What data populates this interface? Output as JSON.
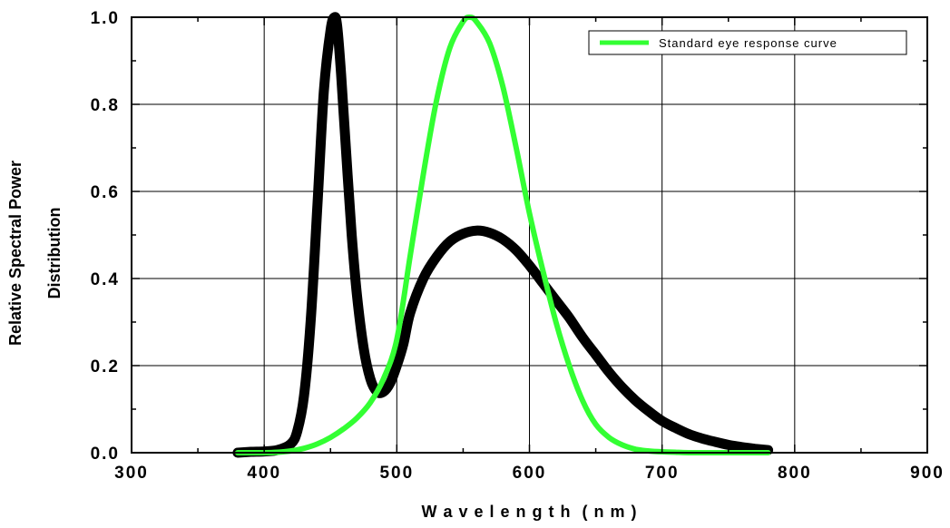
{
  "chart_data": {
    "type": "line",
    "xlabel": "W a v e l e n g t h  ( n m )",
    "ylabel_lines": [
      "Relative Spectral Power",
      "Distribution"
    ],
    "xlim": [
      300,
      900
    ],
    "ylim": [
      0,
      1.0
    ],
    "x_ticks": [
      300,
      400,
      500,
      600,
      700,
      800,
      900
    ],
    "x_tick_labels": [
      "300",
      "400",
      "500",
      "600",
      "700",
      "800",
      "900"
    ],
    "y_ticks": [
      0,
      0.2,
      0.4,
      0.6,
      0.8,
      1.0
    ],
    "y_tick_labels": [
      "0.0",
      "0.2",
      "0.4",
      "0.6",
      "0.8",
      "1.0"
    ],
    "grid": true,
    "legend_position": "top-right",
    "series": [
      {
        "color": "#000000",
        "x": [
          380,
          390,
          400,
          410,
          420,
          425,
          430,
          435,
          440,
          445,
          450,
          453,
          455,
          458,
          462,
          466,
          470,
          475,
          480,
          485,
          490,
          495,
          500,
          505,
          510,
          520,
          530,
          540,
          550,
          560,
          570,
          580,
          590,
          600,
          610,
          620,
          630,
          640,
          650,
          660,
          670,
          680,
          690,
          700,
          710,
          720,
          730,
          740,
          750,
          760,
          770,
          780
        ],
        "y": [
          0.0,
          0.002,
          0.003,
          0.006,
          0.02,
          0.05,
          0.13,
          0.3,
          0.56,
          0.83,
          0.97,
          1.0,
          0.98,
          0.87,
          0.68,
          0.5,
          0.36,
          0.24,
          0.17,
          0.14,
          0.14,
          0.16,
          0.2,
          0.25,
          0.32,
          0.4,
          0.45,
          0.485,
          0.503,
          0.51,
          0.505,
          0.49,
          0.465,
          0.43,
          0.39,
          0.35,
          0.31,
          0.265,
          0.225,
          0.185,
          0.15,
          0.12,
          0.095,
          0.073,
          0.057,
          0.043,
          0.033,
          0.025,
          0.018,
          0.013,
          0.009,
          0.006
        ]
      },
      {
        "name": "Standard eye response curve",
        "color": "#33ff33",
        "x": [
          380,
          400,
          410,
          420,
          430,
          440,
          450,
          460,
          470,
          480,
          490,
          500,
          510,
          520,
          530,
          540,
          550,
          555,
          560,
          570,
          580,
          590,
          600,
          610,
          620,
          630,
          640,
          650,
          660,
          670,
          680,
          690,
          700,
          710,
          720,
          740,
          760,
          780
        ],
        "y": [
          0.0,
          0.0,
          0.001,
          0.004,
          0.01,
          0.02,
          0.035,
          0.055,
          0.08,
          0.115,
          0.17,
          0.26,
          0.45,
          0.64,
          0.81,
          0.93,
          0.99,
          1.0,
          0.99,
          0.94,
          0.84,
          0.7,
          0.55,
          0.42,
          0.3,
          0.2,
          0.12,
          0.065,
          0.035,
          0.018,
          0.008,
          0.004,
          0.002,
          0.001,
          0.0,
          0.0,
          0.0,
          0.0
        ]
      }
    ]
  }
}
